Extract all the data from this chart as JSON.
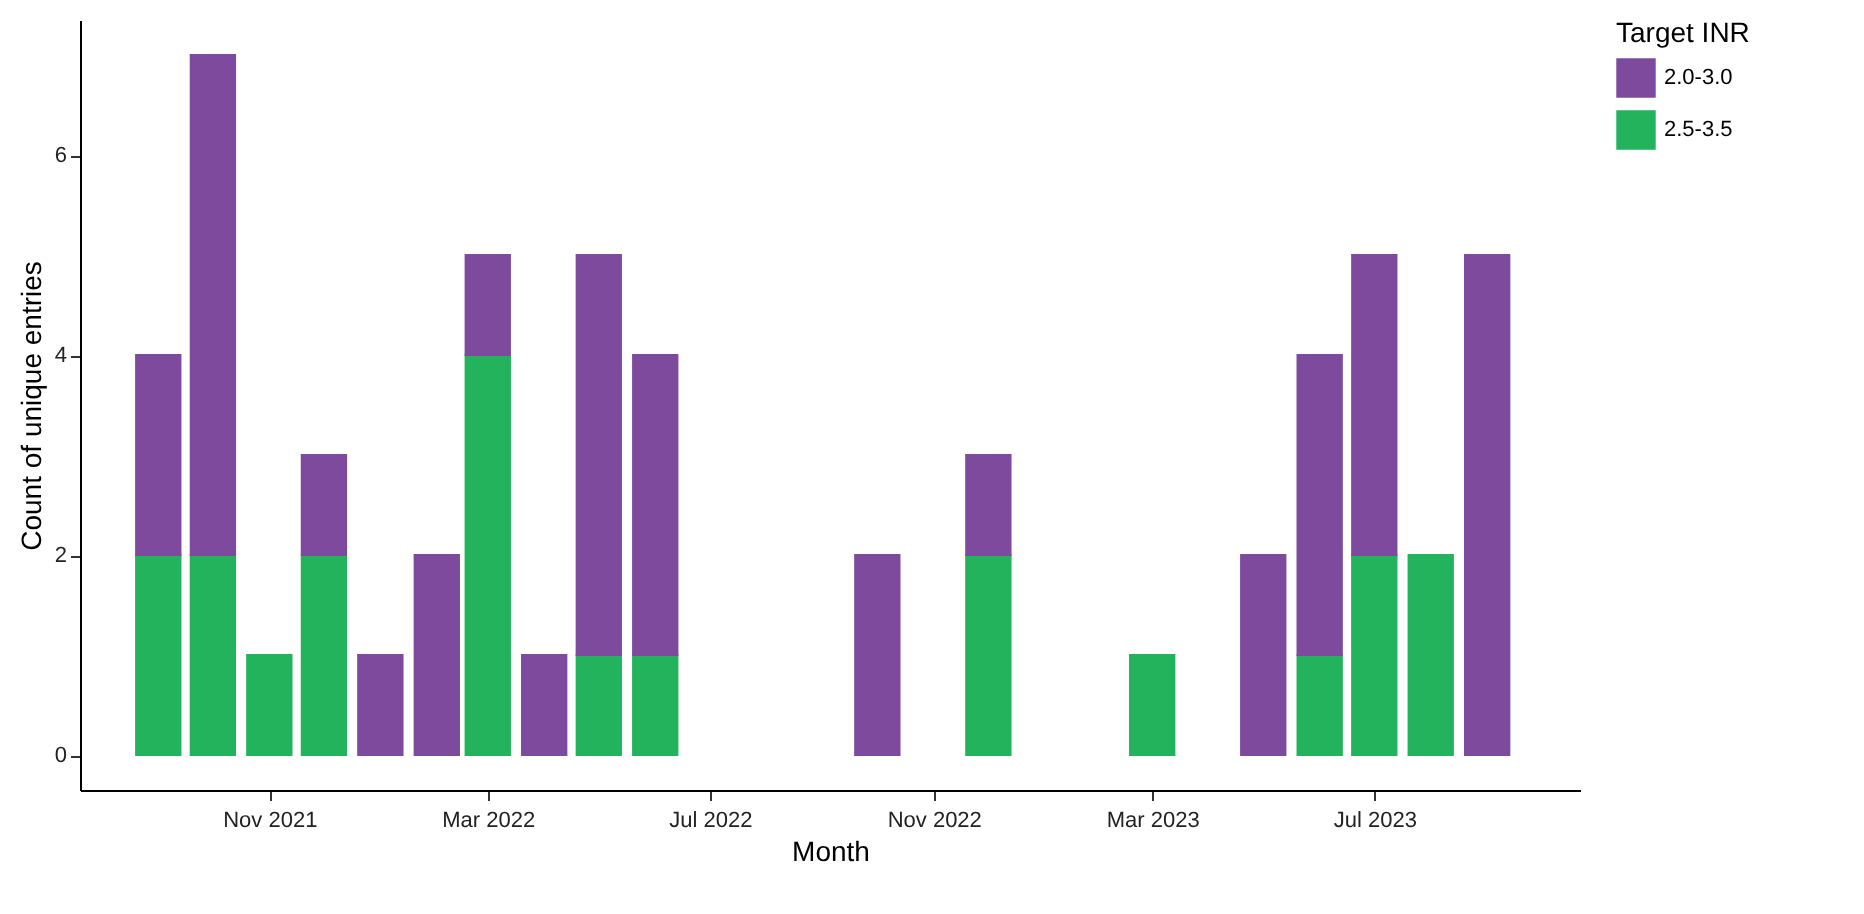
{
  "chart_data": {
    "type": "bar",
    "stacked": true,
    "xlabel": "Month",
    "ylabel": "Count of unique entries",
    "legend_title": "Target INR",
    "legend": "right",
    "grid": false,
    "x": [
      "2021-09",
      "2021-10",
      "2021-11",
      "2021-12",
      "2022-01",
      "2022-02",
      "2022-03",
      "2022-04",
      "2022-05",
      "2022-06",
      "2022-10",
      "2022-12",
      "2023-03",
      "2023-05",
      "2023-06",
      "2023-07",
      "2023-08",
      "2023-09"
    ],
    "xlim": [
      "2021-07-20",
      "2023-10-22"
    ],
    "xticks": [
      {
        "value": "2021-11",
        "label": "Nov 2021"
      },
      {
        "value": "2022-03",
        "label": "Mar 2022"
      },
      {
        "value": "2022-07",
        "label": "Jul 2022"
      },
      {
        "value": "2022-11",
        "label": "Nov 2022"
      },
      {
        "value": "2023-03",
        "label": "Mar 2023"
      },
      {
        "value": "2023-07",
        "label": "Jul 2023"
      }
    ],
    "ylim": [
      -0.35,
      7.35
    ],
    "yticks": [
      0,
      2,
      4,
      6
    ],
    "series": [
      {
        "name": "2.5-3.5",
        "color": "#22b35c",
        "values": [
          2,
          2,
          1,
          2,
          null,
          null,
          4,
          null,
          1,
          1,
          null,
          2,
          1,
          null,
          1,
          2,
          2,
          null
        ]
      },
      {
        "name": "2.0-3.0",
        "color": "#7e4a9e",
        "values": [
          2,
          5,
          null,
          1,
          1,
          2,
          1,
          1,
          4,
          3,
          2,
          1,
          null,
          2,
          3,
          3,
          null,
          5
        ]
      }
    ]
  }
}
